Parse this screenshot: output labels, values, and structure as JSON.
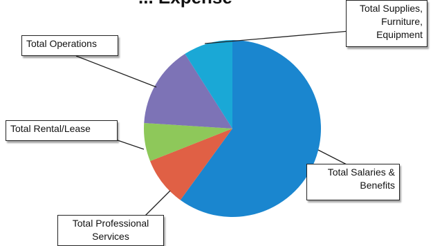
{
  "chart_data": {
    "type": "pie",
    "title": "... Expense",
    "slices": [
      {
        "label": "Total Salaries & Benefits",
        "value": 60,
        "color": "#1a86cf"
      },
      {
        "label": "Total Professional Services",
        "value": 9,
        "color": "#e06045"
      },
      {
        "label": "Total Rental/Lease",
        "value": 7,
        "color": "#8ec85a"
      },
      {
        "label": "Total Operations",
        "value": 15,
        "color": "#7d73b6"
      },
      {
        "label": "Total Supplies, Furniture, Equipment",
        "value": 9,
        "color": "#1aa8d6"
      }
    ]
  },
  "labels": {
    "operations": "Total Operations",
    "rental": "Total Rental/Lease",
    "professional_1": "Total Professional",
    "professional_2": "Services",
    "salaries_1": "Total Salaries &",
    "salaries_2": "Benefits",
    "supplies_1": "Total Supplies,",
    "supplies_2": "Furniture,",
    "supplies_3": "Equipment"
  }
}
